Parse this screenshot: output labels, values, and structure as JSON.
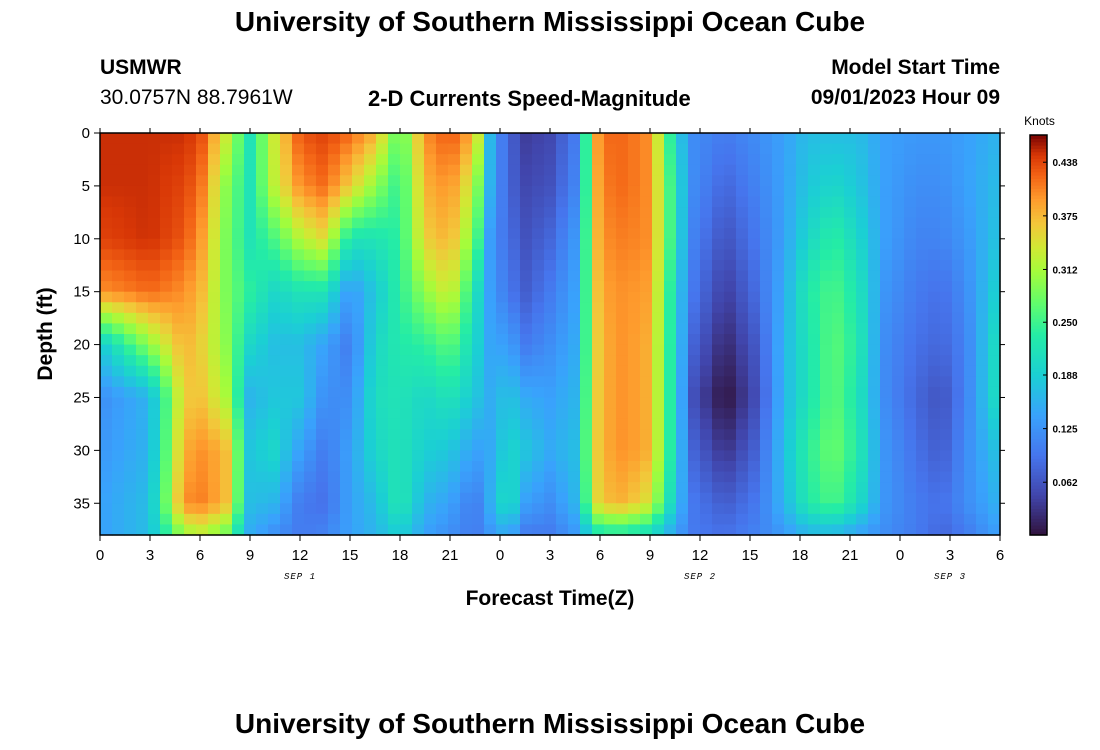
{
  "header": {
    "title": "University of Southern Mississippi Ocean Cube",
    "station": "USMWR",
    "coords": "30.0757N  88.7961W",
    "subtitle": "2-D Currents Speed-Magnitude",
    "model_start_label": "Model Start Time",
    "model_start_value": "09/01/2023 Hour 09"
  },
  "footer": {
    "title": "University of Southern Mississippi Ocean Cube"
  },
  "chart_data": {
    "type": "heatmap",
    "xlabel": "Forecast Time(Z)",
    "ylabel": "Depth (ft)",
    "xlim": [
      0,
      54
    ],
    "ylim": [
      38,
      0
    ],
    "x_ticks": [
      0,
      3,
      6,
      9,
      12,
      15,
      18,
      21,
      24,
      27,
      30,
      33,
      36,
      39,
      42,
      45,
      48,
      51,
      54
    ],
    "x_tick_labels": [
      "0",
      "3",
      "6",
      "9",
      "12",
      "15",
      "18",
      "21",
      "0",
      "3",
      "6",
      "9",
      "12",
      "15",
      "18",
      "21",
      "0",
      "3",
      "6"
    ],
    "date_labels": [
      {
        "x": 12,
        "label": "SEP 1"
      },
      {
        "x": 36,
        "label": "SEP 2"
      },
      {
        "x": 51,
        "label": "SEP 3"
      }
    ],
    "y_ticks": [
      0,
      5,
      10,
      15,
      20,
      25,
      30,
      35
    ],
    "y_tick_labels": [
      "0",
      "5",
      "10",
      "15",
      "20",
      "25",
      "30",
      "35"
    ],
    "colorbar": {
      "unit": "Knots",
      "min": 0.0,
      "max": 0.47,
      "ticks": [
        0.062,
        0.125,
        0.188,
        0.25,
        0.312,
        0.375,
        0.438
      ],
      "tick_labels": [
        "0.062",
        "0.125",
        "0.188",
        "0.250",
        "0.312",
        "0.375",
        "0.438"
      ]
    },
    "speed_field_knots": {
      "description_depths_ft": [
        0,
        5,
        10,
        15,
        20,
        25,
        30,
        35,
        38
      ],
      "columns": [
        {
          "t": 0,
          "v": [
            0.45,
            0.45,
            0.44,
            0.4,
            0.18,
            0.12,
            0.13,
            0.14,
            0.14
          ]
        },
        {
          "t": 3,
          "v": [
            0.45,
            0.45,
            0.45,
            0.42,
            0.3,
            0.16,
            0.16,
            0.17,
            0.17
          ]
        },
        {
          "t": 5,
          "v": [
            0.45,
            0.44,
            0.43,
            0.4,
            0.38,
            0.36,
            0.38,
            0.4,
            0.3
          ]
        },
        {
          "t": 6,
          "v": [
            0.44,
            0.42,
            0.4,
            0.38,
            0.36,
            0.37,
            0.4,
            0.41,
            0.32
          ]
        },
        {
          "t": 7.5,
          "v": [
            0.34,
            0.3,
            0.29,
            0.29,
            0.3,
            0.32,
            0.38,
            0.38,
            0.28
          ]
        },
        {
          "t": 9,
          "v": [
            0.22,
            0.22,
            0.22,
            0.24,
            0.2,
            0.16,
            0.18,
            0.17,
            0.15
          ]
        },
        {
          "t": 10.5,
          "v": [
            0.34,
            0.33,
            0.26,
            0.2,
            0.17,
            0.18,
            0.2,
            0.16,
            0.12
          ]
        },
        {
          "t": 12,
          "v": [
            0.43,
            0.4,
            0.32,
            0.22,
            0.17,
            0.18,
            0.14,
            0.1,
            0.1
          ]
        },
        {
          "t": 13.5,
          "v": [
            0.44,
            0.42,
            0.35,
            0.22,
            0.14,
            0.12,
            0.1,
            0.09,
            0.11
          ]
        },
        {
          "t": 15,
          "v": [
            0.42,
            0.36,
            0.22,
            0.13,
            0.1,
            0.12,
            0.14,
            0.14,
            0.14
          ]
        },
        {
          "t": 16.5,
          "v": [
            0.38,
            0.3,
            0.22,
            0.18,
            0.2,
            0.21,
            0.2,
            0.17,
            0.16
          ]
        },
        {
          "t": 18,
          "v": [
            0.26,
            0.24,
            0.24,
            0.24,
            0.23,
            0.22,
            0.22,
            0.23,
            0.19
          ]
        },
        {
          "t": 19.5,
          "v": [
            0.4,
            0.38,
            0.36,
            0.3,
            0.24,
            0.2,
            0.19,
            0.16,
            0.14
          ]
        },
        {
          "t": 21,
          "v": [
            0.43,
            0.4,
            0.38,
            0.34,
            0.27,
            0.22,
            0.18,
            0.14,
            0.12
          ]
        },
        {
          "t": 22.5,
          "v": [
            0.38,
            0.32,
            0.28,
            0.22,
            0.2,
            0.18,
            0.14,
            0.1,
            0.1
          ]
        },
        {
          "t": 23.5,
          "v": [
            0.14,
            0.14,
            0.12,
            0.13,
            0.14,
            0.15,
            0.15,
            0.16,
            0.13
          ]
        },
        {
          "t": 24.5,
          "v": [
            0.08,
            0.08,
            0.09,
            0.1,
            0.14,
            0.18,
            0.2,
            0.22,
            0.15
          ]
        },
        {
          "t": 25.5,
          "v": [
            0.04,
            0.05,
            0.06,
            0.07,
            0.1,
            0.15,
            0.18,
            0.14,
            0.1
          ]
        },
        {
          "t": 27,
          "v": [
            0.05,
            0.06,
            0.08,
            0.1,
            0.12,
            0.14,
            0.15,
            0.12,
            0.1
          ]
        },
        {
          "t": 28.5,
          "v": [
            0.1,
            0.11,
            0.13,
            0.14,
            0.15,
            0.16,
            0.17,
            0.16,
            0.13
          ]
        },
        {
          "t": 30,
          "v": [
            0.42,
            0.41,
            0.4,
            0.39,
            0.38,
            0.38,
            0.38,
            0.37,
            0.22
          ]
        },
        {
          "t": 31.5,
          "v": [
            0.42,
            0.42,
            0.41,
            0.4,
            0.4,
            0.4,
            0.4,
            0.38,
            0.22
          ]
        },
        {
          "t": 33,
          "v": [
            0.4,
            0.4,
            0.4,
            0.39,
            0.38,
            0.38,
            0.38,
            0.34,
            0.2
          ]
        },
        {
          "t": 34.5,
          "v": [
            0.2,
            0.22,
            0.22,
            0.2,
            0.2,
            0.2,
            0.2,
            0.18,
            0.14
          ]
        },
        {
          "t": 35.5,
          "v": [
            0.12,
            0.12,
            0.11,
            0.1,
            0.08,
            0.06,
            0.08,
            0.1,
            0.1
          ]
        },
        {
          "t": 37.5,
          "v": [
            0.1,
            0.08,
            0.06,
            0.04,
            0.02,
            0.0,
            0.03,
            0.07,
            0.09
          ]
        },
        {
          "t": 39.5,
          "v": [
            0.12,
            0.11,
            0.1,
            0.09,
            0.07,
            0.06,
            0.08,
            0.1,
            0.11
          ]
        },
        {
          "t": 41,
          "v": [
            0.14,
            0.14,
            0.14,
            0.15,
            0.16,
            0.16,
            0.17,
            0.16,
            0.13
          ]
        },
        {
          "t": 42.5,
          "v": [
            0.17,
            0.18,
            0.2,
            0.23,
            0.22,
            0.22,
            0.24,
            0.23,
            0.16
          ]
        },
        {
          "t": 44,
          "v": [
            0.17,
            0.2,
            0.24,
            0.26,
            0.27,
            0.27,
            0.28,
            0.26,
            0.16
          ]
        },
        {
          "t": 45.5,
          "v": [
            0.17,
            0.18,
            0.2,
            0.22,
            0.23,
            0.22,
            0.23,
            0.21,
            0.14
          ]
        },
        {
          "t": 47,
          "v": [
            0.14,
            0.14,
            0.14,
            0.13,
            0.12,
            0.12,
            0.13,
            0.13,
            0.12
          ]
        },
        {
          "t": 49,
          "v": [
            0.13,
            0.12,
            0.11,
            0.1,
            0.09,
            0.08,
            0.09,
            0.1,
            0.1
          ]
        },
        {
          "t": 50.5,
          "v": [
            0.13,
            0.12,
            0.11,
            0.09,
            0.08,
            0.06,
            0.07,
            0.09,
            0.08
          ]
        },
        {
          "t": 52,
          "v": [
            0.14,
            0.14,
            0.13,
            0.12,
            0.11,
            0.11,
            0.12,
            0.12,
            0.1
          ]
        },
        {
          "t": 54,
          "v": [
            0.16,
            0.17,
            0.18,
            0.2,
            0.22,
            0.22,
            0.18,
            0.16,
            0.14
          ]
        }
      ]
    }
  }
}
